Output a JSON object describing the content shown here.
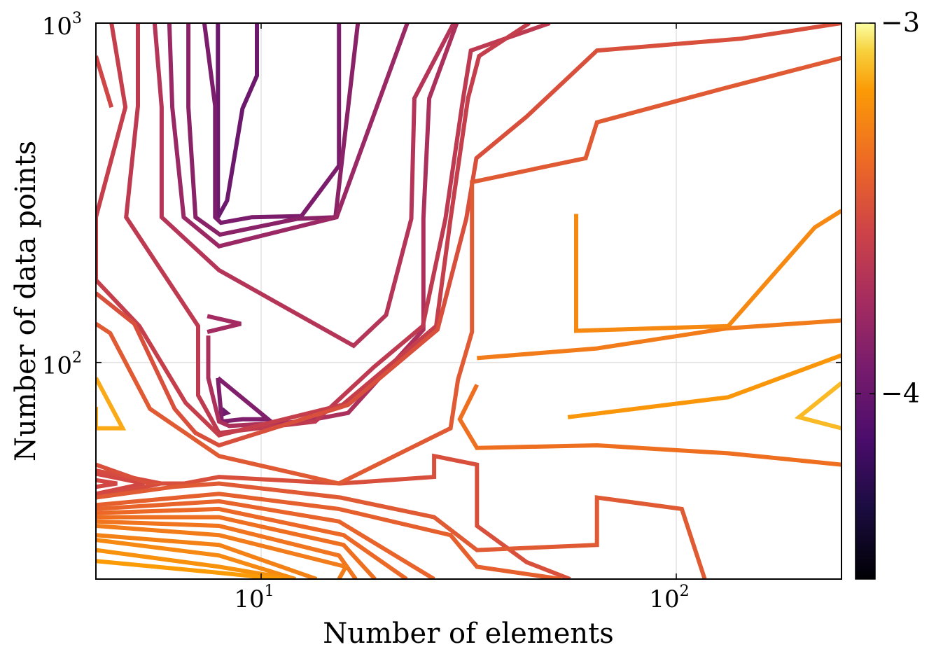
{
  "chart_data": {
    "type": "contour",
    "title": "",
    "xlabel": "Number of elements",
    "ylabel": "Number of data points",
    "x_scale": "log",
    "y_scale": "log",
    "xlim": [
      4,
      250
    ],
    "ylim": [
      23,
      1000
    ],
    "grid": true,
    "x_ticks": [
      {
        "value": 10,
        "base": "10",
        "exp": "1"
      },
      {
        "value": 100,
        "base": "10",
        "exp": "2"
      }
    ],
    "y_ticks": [
      {
        "value": 100,
        "base": "10",
        "exp": "2"
      },
      {
        "value": 1000,
        "base": "10",
        "exp": "3"
      }
    ],
    "colorbar": {
      "colormap": "inferno",
      "range": [
        -4.5,
        -3
      ],
      "ticks": [
        {
          "value": -3,
          "label": "−3"
        },
        {
          "value": -4,
          "label": "−4"
        }
      ]
    },
    "contours": [
      {
        "level": -3.98,
        "points": [
          [
            9.77,
            1000
          ],
          [
            9.77,
            700
          ],
          [
            9.02,
            560
          ],
          [
            8.28,
            300
          ],
          [
            7.87,
            268
          ],
          [
            7.87,
            1000
          ]
        ]
      },
      {
        "level": -3.97,
        "points": [
          [
            8.04,
            73
          ],
          [
            7.99,
            71
          ],
          [
            7.99,
            70
          ],
          [
            8.26,
            71
          ],
          [
            8.04,
            73
          ]
        ]
      },
      {
        "level": -3.92,
        "points": [
          [
            7.3,
            1000
          ],
          [
            7.75,
            570
          ],
          [
            7.75,
            268
          ],
          [
            8.0,
            258
          ],
          [
            9.5,
            268
          ],
          [
            12.5,
            270
          ],
          [
            15.4,
            380
          ],
          [
            15.4,
            1000
          ]
        ]
      },
      {
        "level": -3.9,
        "points": [
          [
            7.87,
            90
          ],
          [
            8.04,
            67
          ],
          [
            9.02,
            68
          ],
          [
            10.4,
            68
          ],
          [
            7.87,
            90
          ]
        ]
      },
      {
        "level": -3.86,
        "points": [
          [
            6.68,
            1000
          ],
          [
            6.68,
            565
          ],
          [
            6.95,
            268
          ],
          [
            7.96,
            238
          ],
          [
            12.2,
            265
          ],
          [
            15.1,
            268
          ],
          [
            17.1,
            1000
          ]
        ]
      },
      {
        "level": -3.8,
        "points": [
          [
            6.01,
            1000
          ],
          [
            6.11,
            565
          ],
          [
            6.51,
            268
          ],
          [
            7.92,
            220
          ],
          [
            15.2,
            268
          ],
          [
            22.5,
            1000
          ]
        ]
      },
      {
        "level": -3.76,
        "points": [
          [
            7.42,
            137
          ],
          [
            8.94,
            130
          ],
          [
            7.42,
            123
          ]
        ]
      },
      {
        "level": -3.72,
        "points": [
          [
            7.46,
            120
          ],
          [
            7.46,
            90
          ],
          [
            7.92,
            67
          ],
          [
            8.38,
            65
          ],
          [
            12.6,
            67
          ],
          [
            16.2,
            71
          ],
          [
            24.6,
            125
          ],
          [
            24.6,
            265
          ],
          [
            25.4,
            600
          ],
          [
            29.6,
            1000
          ]
        ]
      },
      {
        "level": -3.68,
        "points": [
          [
            5.54,
            1000
          ],
          [
            5.76,
            565
          ],
          [
            5.76,
            268
          ],
          [
            7.92,
            187
          ],
          [
            16.7,
            112
          ],
          [
            20.0,
            138
          ],
          [
            23.0,
            265
          ],
          [
            23.4,
            600
          ],
          [
            29.1,
            1000
          ]
        ]
      },
      {
        "level": -3.64,
        "points": [
          [
            5.05,
            1000
          ],
          [
            5.05,
            570
          ],
          [
            4.73,
            268
          ],
          [
            7.05,
            128
          ],
          [
            7.05,
            80
          ],
          [
            7.92,
            62
          ],
          [
            13.5,
            67
          ],
          [
            18.7,
            97
          ],
          [
            24.5,
            128
          ],
          [
            27.8,
            265
          ],
          [
            30.6,
            590
          ],
          [
            32.0,
            830
          ],
          [
            49.6,
            1000
          ]
        ]
      },
      {
        "level": -3.6,
        "points": [
          [
            4.36,
            1000
          ],
          [
            4.71,
            565
          ],
          [
            4.0,
            268
          ],
          [
            4.0,
            175
          ],
          [
            5.09,
            128
          ],
          [
            6.58,
            76
          ],
          [
            7.92,
            61
          ],
          [
            15.7,
            75
          ],
          [
            26.4,
            128
          ],
          [
            28.6,
            265
          ],
          [
            31.5,
            600
          ],
          [
            33.5,
            800
          ],
          [
            44.3,
            1000
          ]
        ]
      },
      {
        "level": -3.55,
        "points": [
          [
            4.0,
            800
          ],
          [
            4.36,
            565
          ]
        ]
      },
      {
        "level": -3.54,
        "points": [
          [
            4.0,
            45
          ],
          [
            4.5,
            44
          ],
          [
            4.0,
            43
          ]
        ]
      },
      {
        "level": -3.54,
        "points": [
          [
            4.0,
            47
          ],
          [
            5.23,
            44
          ],
          [
            4.0,
            41
          ]
        ]
      },
      {
        "level": -3.52,
        "points": [
          [
            4.0,
            48
          ],
          [
            5.74,
            44
          ],
          [
            4.0,
            40
          ]
        ]
      },
      {
        "level": -3.5,
        "points": [
          [
            4.0,
            160
          ],
          [
            4.95,
            130
          ],
          [
            6.19,
            73
          ],
          [
            6.95,
            62
          ],
          [
            7.92,
            57
          ],
          [
            16.2,
            75
          ],
          [
            26.6,
            125
          ],
          [
            31.2,
            265
          ],
          [
            33.0,
            400
          ],
          [
            43.6,
            530
          ],
          [
            64.4,
            830
          ],
          [
            143.4,
            900
          ],
          [
            250,
            1000
          ]
        ]
      },
      {
        "level": -3.5,
        "points": [
          [
            4.0,
            50
          ],
          [
            5.37,
            44
          ],
          [
            6.54,
            44
          ],
          [
            7.92,
            46
          ],
          [
            15.5,
            44
          ],
          [
            26.1,
            46
          ],
          [
            26.1,
            53
          ],
          [
            33.1,
            50
          ],
          [
            33.1,
            33
          ],
          [
            43.6,
            25.8
          ],
          [
            55.5,
            23
          ]
        ]
      },
      {
        "level": -3.45,
        "points": [
          [
            4.0,
            130
          ],
          [
            4.33,
            122
          ],
          [
            5.4,
            73
          ],
          [
            7.92,
            53
          ],
          [
            15.4,
            44
          ],
          [
            28.6,
            64
          ],
          [
            29.8,
            89
          ],
          [
            32.2,
            123
          ],
          [
            32.2,
            340
          ],
          [
            60.5,
            400
          ],
          [
            64.4,
            510
          ],
          [
            128.9,
            640
          ],
          [
            250,
            790
          ]
        ]
      },
      {
        "level": -3.45,
        "points": [
          [
            4.0,
            40
          ],
          [
            6.15,
            43
          ],
          [
            7.92,
            44
          ],
          [
            15.5,
            40
          ],
          [
            26.1,
            35
          ],
          [
            33.1,
            28
          ],
          [
            64.4,
            29
          ],
          [
            64.4,
            40
          ],
          [
            103.1,
            37
          ],
          [
            117.1,
            23
          ]
        ]
      },
      {
        "level": -3.42,
        "points": [
          [
            4.0,
            38
          ],
          [
            7.92,
            41
          ],
          [
            15.4,
            37
          ],
          [
            28.6,
            31
          ],
          [
            33.1,
            25
          ],
          [
            52.8,
            23
          ]
        ]
      },
      {
        "level": -3.4,
        "points": [
          [
            4.0,
            37
          ],
          [
            7.92,
            39
          ],
          [
            15.4,
            34
          ],
          [
            26.1,
            23
          ]
        ]
      },
      {
        "level": -3.38,
        "points": [
          [
            4.0,
            36
          ],
          [
            7.92,
            37
          ],
          [
            15.8,
            31
          ],
          [
            22.4,
            23
          ]
        ]
      },
      {
        "level": -3.35,
        "points": [
          [
            33.1,
            86
          ],
          [
            30.1,
            68
          ],
          [
            33.1,
            56
          ],
          [
            64.4,
            57
          ],
          [
            133.4,
            54
          ],
          [
            250,
            50
          ]
        ]
      },
      {
        "level": -3.35,
        "points": [
          [
            4.0,
            35
          ],
          [
            7.92,
            35
          ],
          [
            15.8,
            29
          ],
          [
            18.8,
            23
          ]
        ]
      },
      {
        "level": -3.33,
        "points": [
          [
            4.0,
            34
          ],
          [
            7.92,
            33
          ],
          [
            15.4,
            27
          ],
          [
            16.9,
            23
          ]
        ]
      },
      {
        "level": -3.3,
        "points": [
          [
            33.1,
            103
          ],
          [
            64.4,
            110
          ],
          [
            132.2,
            126
          ],
          [
            250,
            133
          ]
        ]
      },
      {
        "level": -3.3,
        "points": [
          [
            4.0,
            33
          ],
          [
            7.92,
            31
          ],
          [
            16.0,
            25
          ],
          [
            15.4,
            23
          ]
        ]
      },
      {
        "level": -3.28,
        "points": [
          [
            4.0,
            31
          ],
          [
            7.92,
            29
          ],
          [
            13.6,
            23
          ]
        ]
      },
      {
        "level": -3.25,
        "points": [
          [
            57.4,
            274
          ],
          [
            57.4,
            124
          ],
          [
            133.4,
            128
          ],
          [
            215.6,
            250
          ],
          [
            250,
            280
          ]
        ]
      },
      {
        "level": -3.25,
        "points": [
          [
            4.0,
            30
          ],
          [
            7.92,
            27
          ],
          [
            12.1,
            23
          ]
        ]
      },
      {
        "level": -3.22,
        "points": [
          [
            4.0,
            28
          ],
          [
            7.92,
            25
          ],
          [
            11.9,
            23
          ]
        ]
      },
      {
        "level": -3.2,
        "points": [
          [
            54.8,
            69
          ],
          [
            133.4,
            79
          ],
          [
            250,
            105
          ]
        ]
      },
      {
        "level": -3.18,
        "points": [
          [
            4.0,
            26
          ],
          [
            7.92,
            24
          ],
          [
            11.2,
            23
          ]
        ]
      },
      {
        "level": -3.15,
        "points": [
          [
            4.0,
            74
          ],
          [
            4.0,
            64
          ],
          [
            4.64,
            64
          ],
          [
            4.0,
            90
          ]
        ]
      },
      {
        "level": -3.12,
        "points": [
          [
            250,
            64
          ],
          [
            197.5,
            69
          ],
          [
            250,
            87
          ]
        ]
      }
    ]
  }
}
